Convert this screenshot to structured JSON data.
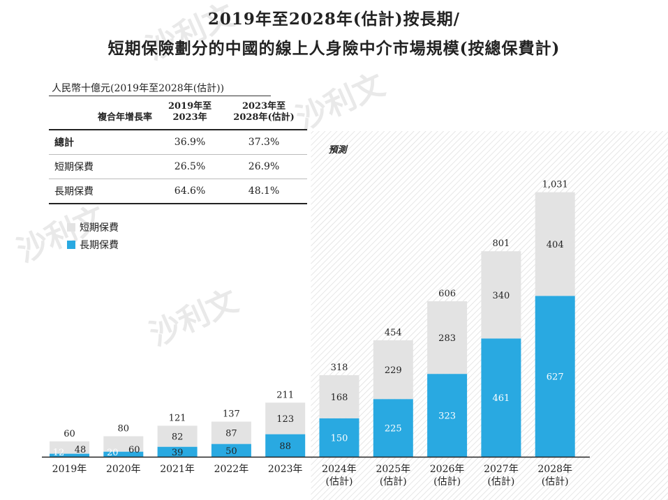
{
  "title_line1": "2019年至2028年(估計)按長期/",
  "title_line2": "短期保險劃分的中國的線上人身險中介市場規模(按總保費計)",
  "unit_label": "人民幣十億元(2019年至2028年(估計))",
  "cagr_table": {
    "header_label": "複合年增長率",
    "col1": "2019年至\n2023年",
    "col2": "2023年至\n2028年(估計)",
    "rows": [
      {
        "label": "總計",
        "v1": "36.9%",
        "v2": "37.3%"
      },
      {
        "label": "短期保費",
        "v1": "26.5%",
        "v2": "26.9%"
      },
      {
        "label": "長期保費",
        "v1": "64.6%",
        "v2": "48.1%"
      }
    ]
  },
  "watermark": "沙利文",
  "chart_data": {
    "type": "bar",
    "stacked": true,
    "categories": [
      "2019年",
      "2020年",
      "2021年",
      "2022年",
      "2023年",
      "2024年\n(估計)",
      "2025年\n(估計)",
      "2026年\n(估計)",
      "2027年\n(估計)",
      "2028年\n(估計)"
    ],
    "series": [
      {
        "name": "長期保費",
        "color": "#29a9e1",
        "values": [
          12,
          20,
          39,
          50,
          88,
          150,
          225,
          323,
          461,
          627
        ]
      },
      {
        "name": "短期保費",
        "color": "#e3e3e3",
        "values": [
          48,
          60,
          82,
          87,
          123,
          168,
          229,
          283,
          340,
          404
        ]
      }
    ],
    "totals": [
      60,
      80,
      121,
      137,
      211,
      318,
      454,
      606,
      801,
      1031
    ],
    "total_labels": [
      "60",
      "80",
      "121",
      "137",
      "211",
      "318",
      "454",
      "606",
      "801",
      "1,031"
    ],
    "forecast_label": "預測",
    "forecast_start_index": 5,
    "ylim": [
      0,
      1031
    ],
    "legend_position": "upper-left"
  }
}
